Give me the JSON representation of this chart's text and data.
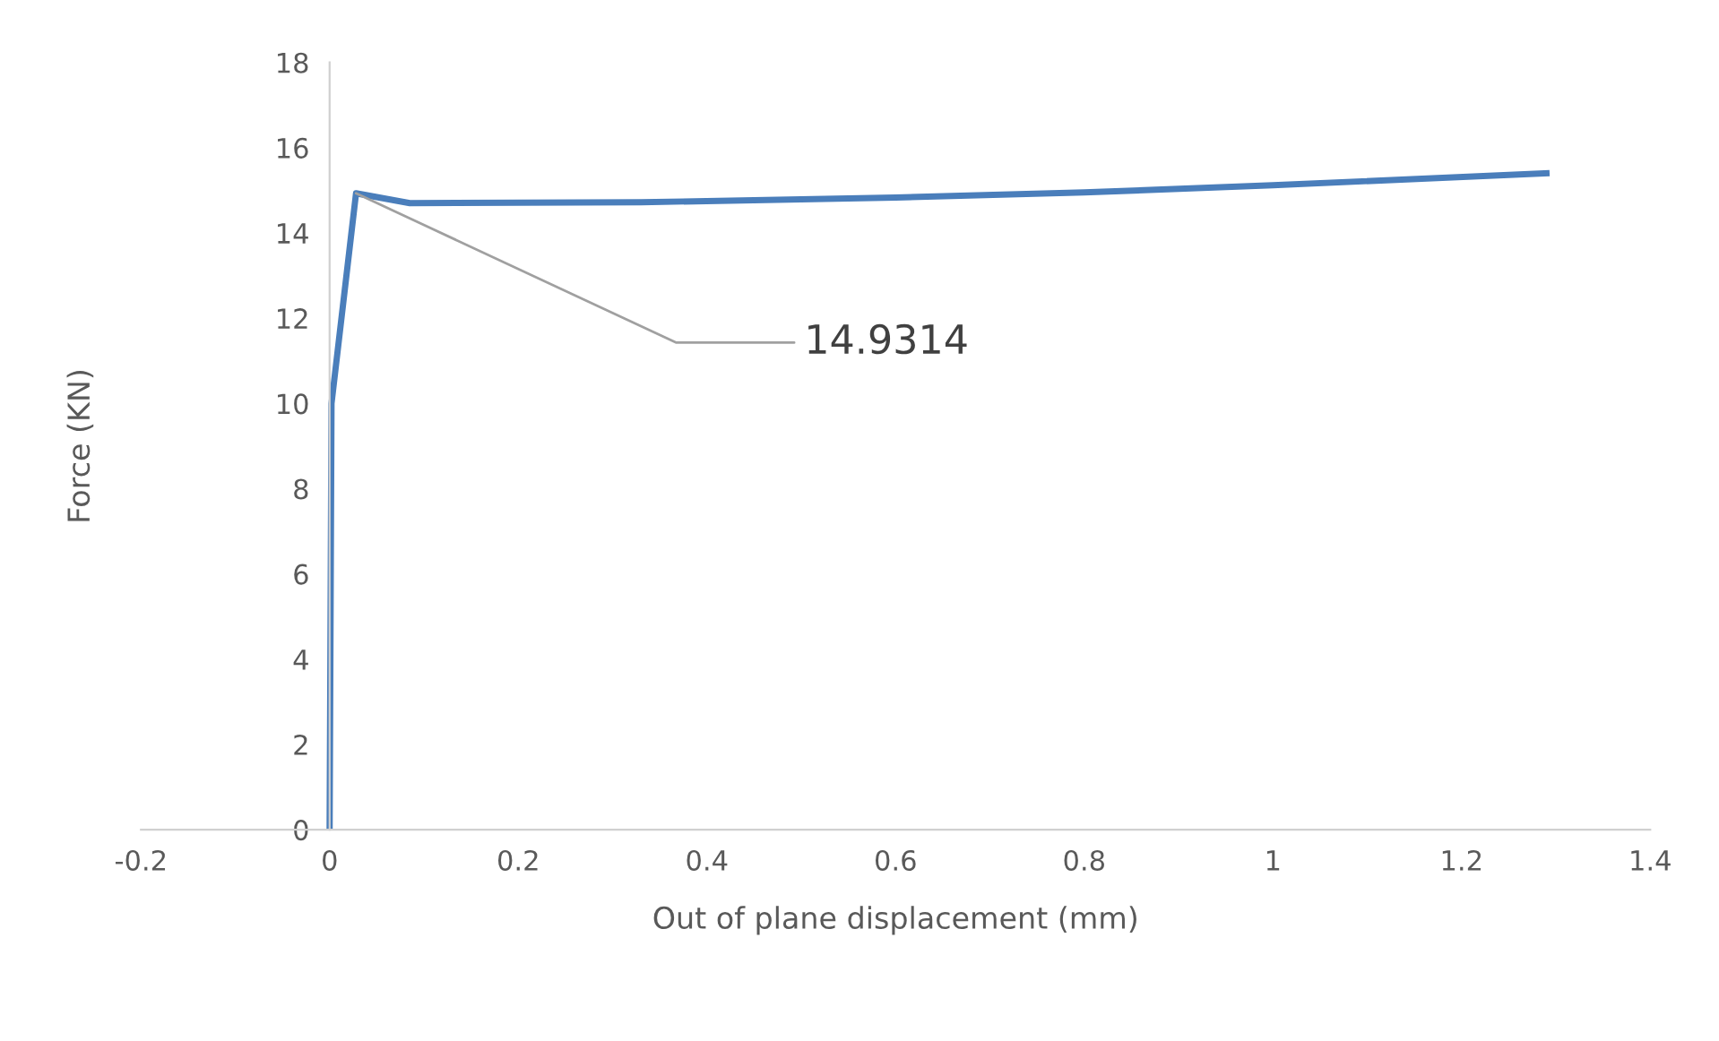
{
  "chart_data": {
    "type": "line",
    "xlabel": "Out of plane displacement (mm)",
    "ylabel": "Force (KN)",
    "x": [
      0,
      0.002,
      0.028,
      0.085,
      0.33,
      0.6,
      0.8,
      1.0,
      1.29
    ],
    "series": [
      {
        "color": "#4a7ebb",
        "values": [
          0,
          10,
          14.93,
          14.7,
          14.72,
          14.83,
          14.95,
          15.12,
          15.4
        ]
      }
    ],
    "annotations": [
      {
        "text": "14.9314",
        "x": 0.028,
        "y": 14.93
      }
    ],
    "xlim": [
      -0.2,
      1.4
    ],
    "xticks": [
      -0.2,
      0,
      0.2,
      0.4,
      0.6,
      0.8,
      1,
      1.2,
      1.4
    ],
    "ylim": [
      0,
      18
    ],
    "yticks": [
      0,
      2,
      4,
      6,
      8,
      10,
      12,
      14,
      16,
      18
    ],
    "grid": false,
    "marker": "none",
    "line_style": "solid"
  }
}
